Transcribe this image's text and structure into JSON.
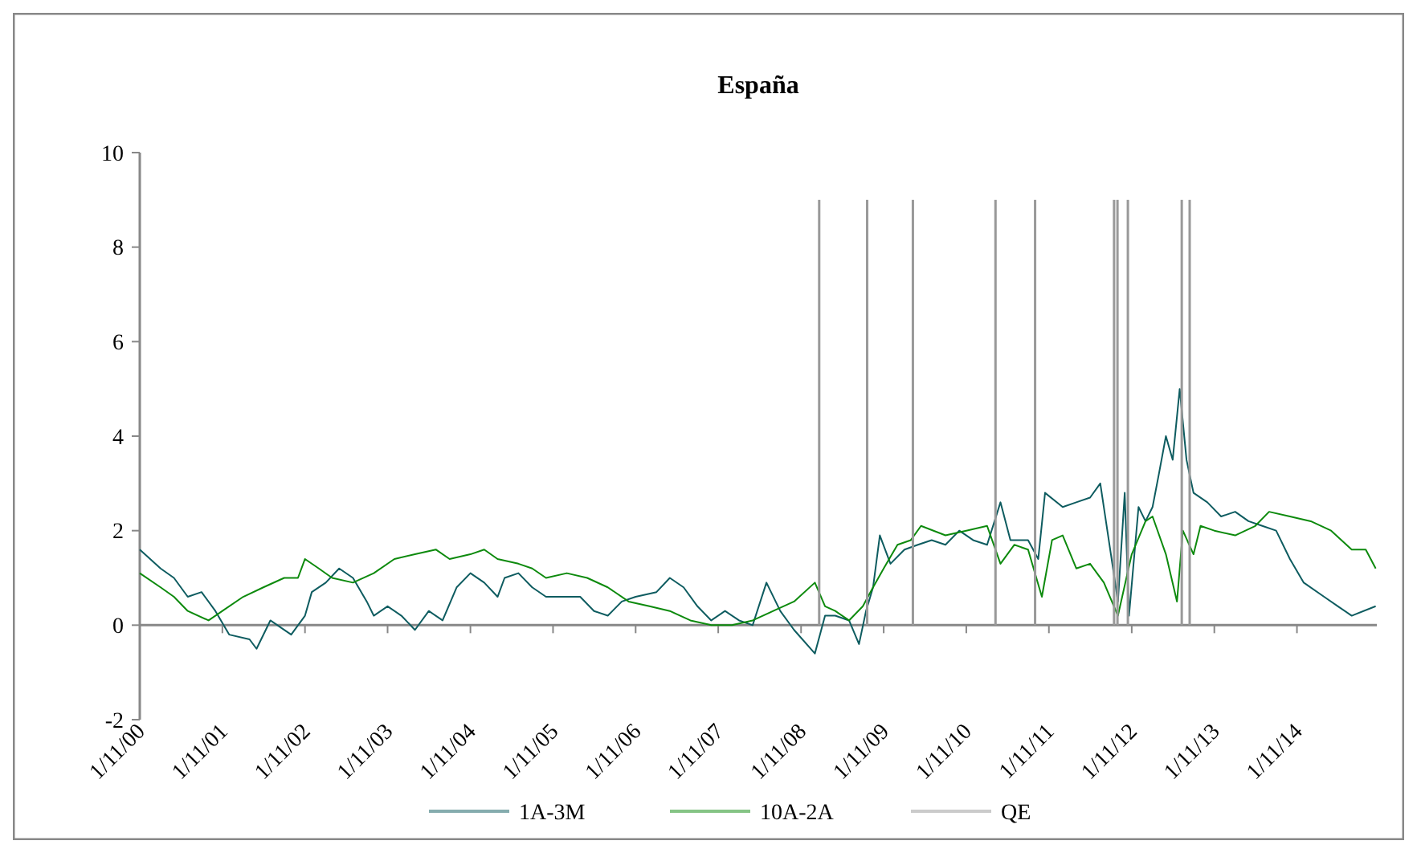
{
  "chart_data": {
    "type": "line",
    "title": "España",
    "xlim": [
      "2000-11-01",
      "2015-10-20"
    ],
    "xticks": [
      {
        "value": "2000-11-01",
        "label": "1/11/00"
      },
      {
        "value": "2001-11-01",
        "label": "1/11/01"
      },
      {
        "value": "2002-11-01",
        "label": "1/11/02"
      },
      {
        "value": "2003-11-01",
        "label": "1/11/03"
      },
      {
        "value": "2004-11-01",
        "label": "1/11/04"
      },
      {
        "value": "2005-11-01",
        "label": "1/11/05"
      },
      {
        "value": "2006-11-01",
        "label": "1/11/06"
      },
      {
        "value": "2007-11-01",
        "label": "1/11/07"
      },
      {
        "value": "2008-11-01",
        "label": "1/11/08"
      },
      {
        "value": "2009-11-01",
        "label": "1/11/09"
      },
      {
        "value": "2010-11-01",
        "label": "1/11/10"
      },
      {
        "value": "2011-11-01",
        "label": "1/11/11"
      },
      {
        "value": "2012-11-01",
        "label": "1/11/12"
      },
      {
        "value": "2013-11-01",
        "label": "1/11/13"
      },
      {
        "value": "2014-11-01",
        "label": "1/11/14"
      }
    ],
    "ylim": [
      -2,
      10
    ],
    "yticks": [
      -2,
      0,
      2,
      4,
      6,
      8,
      10
    ],
    "legend": "bottom",
    "marker": "none",
    "line_style": "solid",
    "series": [
      {
        "name": "1A-3M",
        "color": "#0e5c60",
        "x": [
          "2000-11-01",
          "2001-02-01",
          "2001-04-01",
          "2001-06-01",
          "2001-08-01",
          "2001-10-01",
          "2001-12-01",
          "2002-03-01",
          "2002-04-01",
          "2002-06-01",
          "2002-09-01",
          "2002-11-01",
          "2002-12-01",
          "2003-02-01",
          "2003-04-01",
          "2003-06-01",
          "2003-08-01",
          "2003-09-01",
          "2003-11-01",
          "2004-01-01",
          "2004-03-01",
          "2004-05-01",
          "2004-07-01",
          "2004-09-01",
          "2004-11-01",
          "2005-01-01",
          "2005-03-01",
          "2005-04-01",
          "2005-06-01",
          "2005-08-01",
          "2005-10-01",
          "2006-01-01",
          "2006-03-01",
          "2006-05-01",
          "2006-07-01",
          "2006-09-01",
          "2006-11-01",
          "2007-02-01",
          "2007-04-01",
          "2007-06-01",
          "2007-08-01",
          "2007-10-01",
          "2007-12-01",
          "2008-02-01",
          "2008-04-01",
          "2008-06-01",
          "2008-08-01",
          "2008-10-01",
          "2009-01-01",
          "2009-02-15",
          "2009-04-01",
          "2009-06-01",
          "2009-07-15",
          "2009-08-15",
          "2009-09-15",
          "2009-10-15",
          "2009-12-01",
          "2010-02-01",
          "2010-04-01",
          "2010-06-01",
          "2010-08-01",
          "2010-10-01",
          "2010-12-01",
          "2011-02-01",
          "2011-04-01",
          "2011-05-15",
          "2011-08-01",
          "2011-09-15",
          "2011-10-15",
          "2012-01-01",
          "2012-03-01",
          "2012-05-01",
          "2012-06-15",
          "2012-08-01",
          "2012-09-01",
          "2012-10-01",
          "2012-10-20",
          "2012-12-01",
          "2013-01-01",
          "2013-02-01",
          "2013-03-01",
          "2013-04-01",
          "2013-05-01",
          "2013-06-01",
          "2013-07-01",
          "2013-08-01",
          "2013-10-01",
          "2013-12-01",
          "2014-02-01",
          "2014-04-01",
          "2014-06-01",
          "2014-08-01",
          "2014-10-01",
          "2014-12-01",
          "2015-03-01",
          "2015-05-01",
          "2015-07-01",
          "2015-10-15"
        ],
        "values": [
          1.6,
          1.2,
          1.0,
          0.6,
          0.7,
          0.3,
          -0.2,
          -0.3,
          -0.5,
          0.1,
          -0.2,
          0.2,
          0.7,
          0.9,
          1.2,
          1.0,
          0.5,
          0.2,
          0.4,
          0.2,
          -0.1,
          0.3,
          0.1,
          0.8,
          1.1,
          0.9,
          0.6,
          1.0,
          1.1,
          0.8,
          0.6,
          0.6,
          0.6,
          0.3,
          0.2,
          0.5,
          0.6,
          0.7,
          1.0,
          0.8,
          0.4,
          0.1,
          0.3,
          0.1,
          0.0,
          0.9,
          0.3,
          -0.1,
          -0.6,
          0.2,
          0.2,
          0.1,
          -0.4,
          0.3,
          0.8,
          1.9,
          1.3,
          1.6,
          1.7,
          1.8,
          1.7,
          2.0,
          1.8,
          1.7,
          2.6,
          1.8,
          1.8,
          1.4,
          2.8,
          2.5,
          2.6,
          2.7,
          3.0,
          1.5,
          0.5,
          2.8,
          0.2,
          2.5,
          2.2,
          2.5,
          3.2,
          4.0,
          3.5,
          5.0,
          3.5,
          2.8,
          2.6,
          2.3,
          2.4,
          2.2,
          2.1,
          2.0,
          1.4,
          0.9,
          0.6,
          0.4,
          0.2,
          0.4
        ]
      },
      {
        "name": "10A-2A",
        "color": "#0d8a0d",
        "x": [
          "2000-11-01",
          "2001-02-01",
          "2001-04-01",
          "2001-06-01",
          "2001-09-01",
          "2001-11-01",
          "2002-02-01",
          "2002-05-01",
          "2002-08-01",
          "2002-10-01",
          "2002-11-01",
          "2003-01-01",
          "2003-03-01",
          "2003-06-01",
          "2003-09-01",
          "2003-12-01",
          "2004-03-01",
          "2004-06-01",
          "2004-08-01",
          "2004-11-01",
          "2005-01-01",
          "2005-03-01",
          "2005-06-01",
          "2005-08-01",
          "2005-10-01",
          "2006-01-01",
          "2006-04-01",
          "2006-07-01",
          "2006-10-01",
          "2007-01-01",
          "2007-04-01",
          "2007-07-01",
          "2007-10-01",
          "2008-01-01",
          "2008-04-01",
          "2008-07-01",
          "2008-10-01",
          "2009-01-01",
          "2009-02-15",
          "2009-04-01",
          "2009-06-01",
          "2009-08-01",
          "2009-09-15",
          "2009-11-01",
          "2010-01-01",
          "2010-03-01",
          "2010-04-15",
          "2010-08-01",
          "2010-11-01",
          "2011-02-01",
          "2011-04-01",
          "2011-06-01",
          "2011-08-01",
          "2011-10-01",
          "2011-11-15",
          "2012-01-01",
          "2012-03-01",
          "2012-05-01",
          "2012-07-01",
          "2012-09-01",
          "2012-11-01",
          "2013-01-01",
          "2013-02-01",
          "2013-04-01",
          "2013-05-20",
          "2013-06-15",
          "2013-08-01",
          "2013-09-01",
          "2013-11-01",
          "2014-02-01",
          "2014-05-01",
          "2014-07-01",
          "2014-10-01",
          "2015-01-01",
          "2015-04-01",
          "2015-07-01",
          "2015-09-01",
          "2015-10-15"
        ],
        "values": [
          1.1,
          0.8,
          0.6,
          0.3,
          0.1,
          0.3,
          0.6,
          0.8,
          1.0,
          1.0,
          1.4,
          1.2,
          1.0,
          0.9,
          1.1,
          1.4,
          1.5,
          1.6,
          1.4,
          1.5,
          1.6,
          1.4,
          1.3,
          1.2,
          1.0,
          1.1,
          1.0,
          0.8,
          0.5,
          0.4,
          0.3,
          0.1,
          0.0,
          0.0,
          0.1,
          0.3,
          0.5,
          0.9,
          0.4,
          0.3,
          0.1,
          0.4,
          0.8,
          1.2,
          1.7,
          1.8,
          2.1,
          1.9,
          2.0,
          2.1,
          1.3,
          1.7,
          1.6,
          0.6,
          1.8,
          1.9,
          1.2,
          1.3,
          0.9,
          0.2,
          1.5,
          2.2,
          2.3,
          1.5,
          0.5,
          2.0,
          1.5,
          2.1,
          2.0,
          1.9,
          2.1,
          2.4,
          2.3,
          2.2,
          2.0,
          1.6,
          1.6,
          1.2
        ]
      },
      {
        "name": "QE",
        "type": "bar",
        "color": "#999999",
        "x": [
          "2009-01-20",
          "2009-08-20",
          "2010-03-10",
          "2011-03-10",
          "2011-09-01",
          "2012-08-15",
          "2012-08-30",
          "2012-10-15",
          "2013-06-10",
          "2013-07-15"
        ],
        "values": [
          9,
          9,
          9,
          9,
          9,
          9,
          9,
          9,
          9,
          9
        ]
      }
    ]
  }
}
